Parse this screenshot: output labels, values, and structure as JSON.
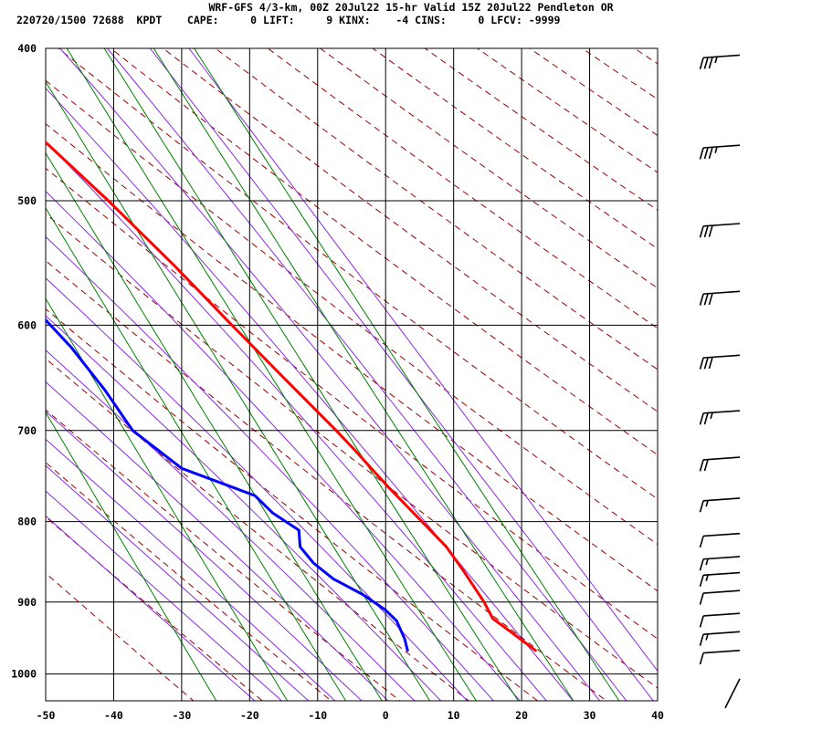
{
  "header": {
    "title": "WRF-GFS 4/3-km, 00Z 20Jul22 15-hr Valid 15Z 20Jul22 Pendleton OR",
    "stats": "220720/1500 72688  KPDT    CAPE:     0 LIFT:     9 KINX:    -4 CINS:     0 LFCV: -9999"
  },
  "colors": {
    "temperature": "#ff0000",
    "dewpoint": "#0000ff",
    "dry_adiabat": "#990000",
    "moist_adiabat": "#8a2be2",
    "mixing_ratio": "#008000",
    "grid": "#000000"
  },
  "chart_data": {
    "type": "line",
    "subtype": "skew-T log-P sounding",
    "title": "WRF-GFS 4/3-km, 00Z 20Jul22 15-hr Valid 15Z 20Jul22 Pendleton OR",
    "xlabel": "",
    "ylabel": "",
    "xlim": [
      -50,
      40
    ],
    "ylim": [
      1040,
      400
    ],
    "y_scale": "log",
    "grid": true,
    "x_ticks": [
      -50,
      -40,
      -30,
      -20,
      -10,
      0,
      10,
      20,
      30,
      40
    ],
    "y_ticks": [
      400,
      500,
      600,
      700,
      800,
      900,
      1000
    ],
    "series": [
      {
        "key": "temperature",
        "color": "#ff0000",
        "points": [
          {
            "p": 966,
            "t": 23.4
          },
          {
            "p": 940,
            "t": 21.1
          },
          {
            "p": 922,
            "t": 19.4
          },
          {
            "p": 900,
            "t": 19.3
          },
          {
            "p": 860,
            "t": 18.5
          },
          {
            "p": 830,
            "t": 17.7
          },
          {
            "p": 800,
            "t": 15.9
          },
          {
            "p": 760,
            "t": 13.4
          },
          {
            "p": 720,
            "t": 11.1
          },
          {
            "p": 700,
            "t": 9.8
          },
          {
            "p": 650,
            "t": 6.0
          },
          {
            "p": 600,
            "t": 2.0
          },
          {
            "p": 550,
            "t": -2.2
          },
          {
            "p": 500,
            "t": -7.3
          },
          {
            "p": 460,
            "t": -12.2
          },
          {
            "p": 404,
            "t": -21.0
          }
        ]
      },
      {
        "key": "dewpoint",
        "color": "#0000ff",
        "points": [
          {
            "p": 966,
            "t": 4.6
          },
          {
            "p": 950,
            "t": 5.0
          },
          {
            "p": 925,
            "t": 5.1
          },
          {
            "p": 910,
            "t": 4.2
          },
          {
            "p": 890,
            "t": 2.0
          },
          {
            "p": 870,
            "t": -1.2
          },
          {
            "p": 850,
            "t": -3.0
          },
          {
            "p": 830,
            "t": -3.8
          },
          {
            "p": 810,
            "t": -2.8
          },
          {
            "p": 790,
            "t": -5.4
          },
          {
            "p": 770,
            "t": -6.8
          },
          {
            "p": 740,
            "t": -15.6
          },
          {
            "p": 700,
            "t": -20.1
          },
          {
            "p": 660,
            "t": -21.3
          },
          {
            "p": 620,
            "t": -23.2
          },
          {
            "p": 580,
            "t": -26.2
          },
          {
            "p": 520,
            "t": -32.4
          },
          {
            "p": 465,
            "t": -34.2
          },
          {
            "p": 404,
            "t": -37.1
          }
        ]
      }
    ],
    "wind_barbs": [
      {
        "p": 404,
        "speed_kt": 35
      },
      {
        "p": 461,
        "speed_kt": 35
      },
      {
        "p": 517,
        "speed_kt": 30
      },
      {
        "p": 571,
        "speed_kt": 30
      },
      {
        "p": 627,
        "speed_kt": 30
      },
      {
        "p": 680,
        "speed_kt": 25
      },
      {
        "p": 728,
        "speed_kt": 20
      },
      {
        "p": 773,
        "speed_kt": 15
      },
      {
        "p": 814,
        "speed_kt": 10
      },
      {
        "p": 842,
        "speed_kt": 15
      },
      {
        "p": 862,
        "speed_kt": 15
      },
      {
        "p": 885,
        "speed_kt": 10
      },
      {
        "p": 915,
        "speed_kt": 10
      },
      {
        "p": 940,
        "speed_kt": 15
      },
      {
        "p": 966,
        "speed_kt": 10
      },
      {
        "p": 1007,
        "speed_kt": 0
      }
    ]
  }
}
